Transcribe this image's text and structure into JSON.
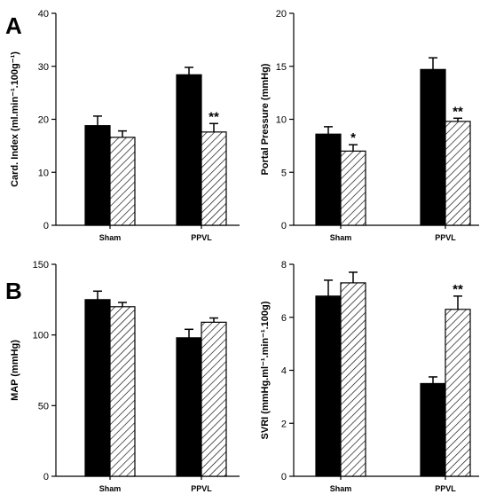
{
  "panel_labels": [
    "A",
    "B"
  ],
  "colors": {
    "solid": "#000000",
    "hatch": "#000000",
    "background": "#ffffff"
  },
  "chart_data": [
    {
      "type": "bar",
      "ylabel": "Card. Index (ml.min⁻¹.100g⁻¹)",
      "categories": [
        "Sham",
        "PPVL"
      ],
      "ylim": [
        0,
        40
      ],
      "yticks": [
        0,
        10,
        20,
        30,
        40
      ],
      "series": [
        {
          "fill": "solid",
          "values": [
            18.8,
            28.4
          ],
          "errors": [
            1.8,
            1.4
          ]
        },
        {
          "fill": "hatched",
          "values": [
            16.6,
            17.6
          ],
          "errors": [
            1.2,
            1.6
          ]
        }
      ],
      "annotations": [
        {
          "category": 1,
          "series": 1,
          "text": "**"
        }
      ]
    },
    {
      "type": "bar",
      "ylabel": "Portal Pressure (mmHg)",
      "categories": [
        "Sham",
        "PPVL"
      ],
      "ylim": [
        0,
        20
      ],
      "yticks": [
        0,
        5,
        10,
        15,
        20
      ],
      "series": [
        {
          "fill": "solid",
          "values": [
            8.6,
            14.7
          ],
          "errors": [
            0.7,
            1.1
          ]
        },
        {
          "fill": "hatched",
          "values": [
            7.0,
            9.8
          ],
          "errors": [
            0.6,
            0.3
          ]
        }
      ],
      "annotations": [
        {
          "category": 0,
          "series": 1,
          "text": "*"
        },
        {
          "category": 1,
          "series": 1,
          "text": "**"
        }
      ]
    },
    {
      "type": "bar",
      "ylabel": "MAP (mmHg)",
      "categories": [
        "Sham",
        "PPVL"
      ],
      "ylim": [
        0,
        150
      ],
      "yticks": [
        0,
        50,
        100,
        150
      ],
      "series": [
        {
          "fill": "solid",
          "values": [
            125,
            98
          ],
          "errors": [
            6,
            6
          ]
        },
        {
          "fill": "hatched",
          "values": [
            120,
            109
          ],
          "errors": [
            3,
            3
          ]
        }
      ],
      "annotations": []
    },
    {
      "type": "bar",
      "ylabel": "SVRI (mmHg.ml⁻¹.min⁻¹.100g)",
      "categories": [
        "Sham",
        "PPVL"
      ],
      "ylim": [
        0,
        8
      ],
      "yticks": [
        0,
        2,
        4,
        6,
        8
      ],
      "series": [
        {
          "fill": "solid",
          "values": [
            6.8,
            3.5
          ],
          "errors": [
            0.6,
            0.25
          ]
        },
        {
          "fill": "hatched",
          "values": [
            7.3,
            6.3
          ],
          "errors": [
            0.4,
            0.5
          ]
        }
      ],
      "annotations": [
        {
          "category": 1,
          "series": 1,
          "text": "**"
        }
      ]
    }
  ]
}
